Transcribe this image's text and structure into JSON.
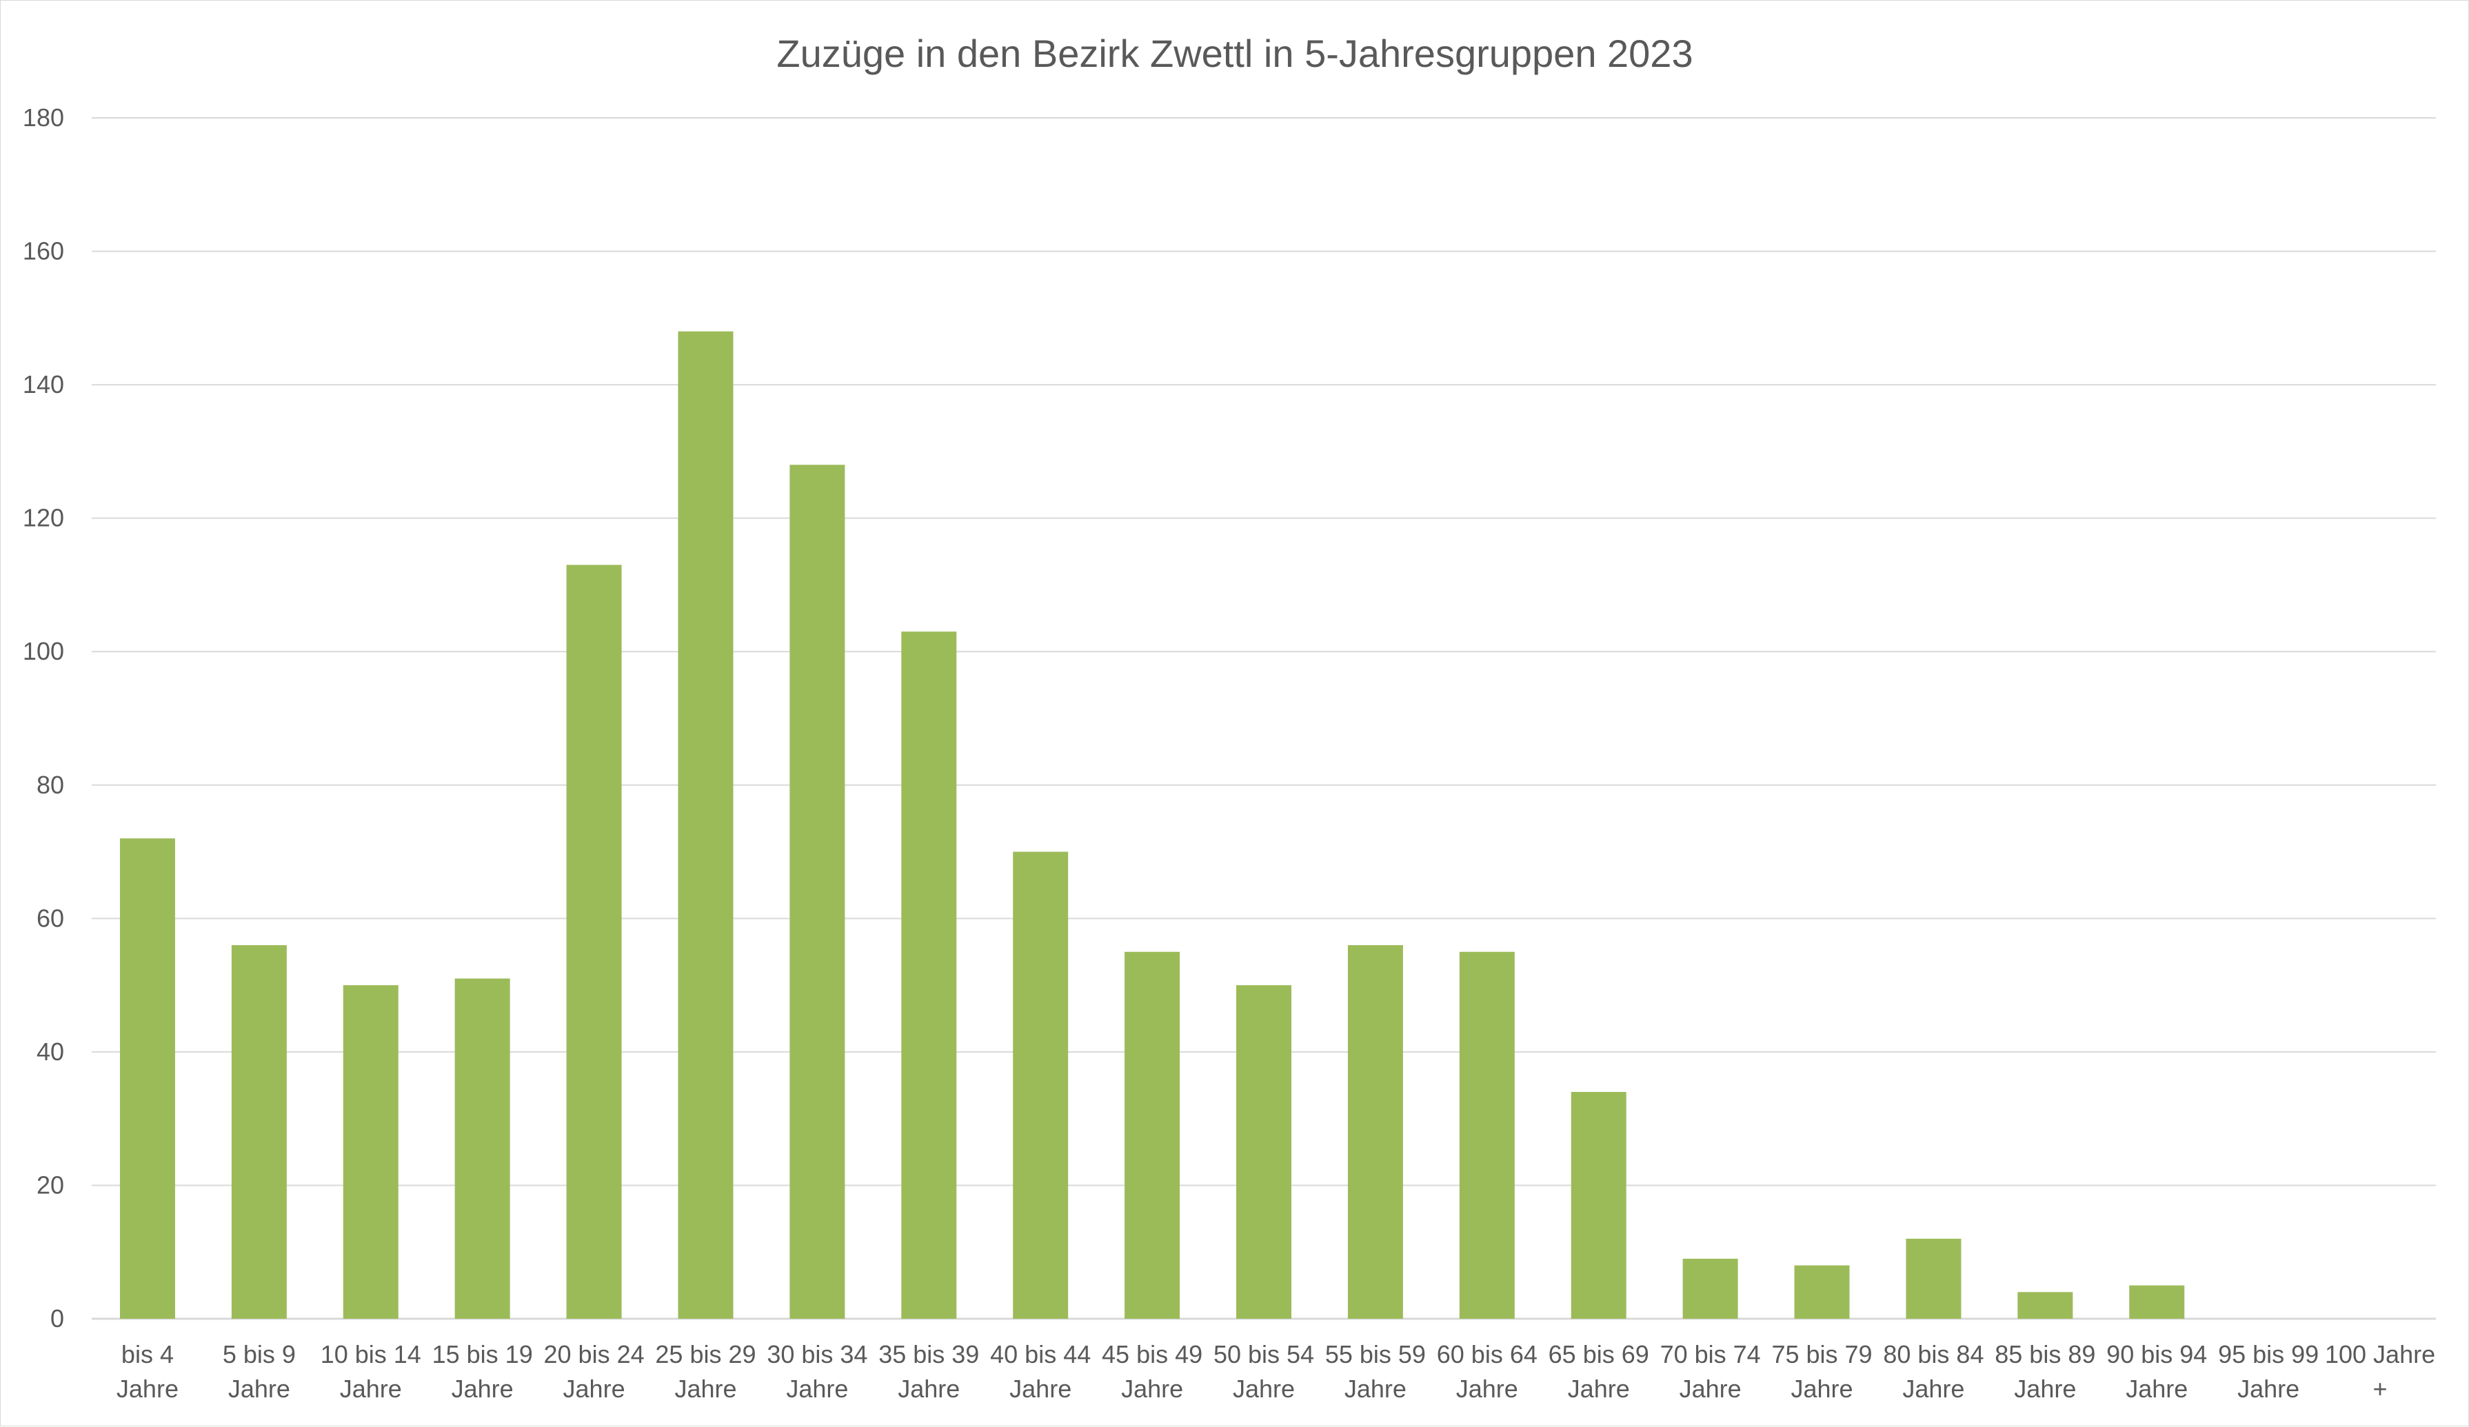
{
  "chart_data": {
    "type": "bar",
    "title": "Zuzüge in den Bezirk Zwettl in 5-Jahresgruppen 2023",
    "xlabel": "",
    "ylabel": "",
    "ylim": [
      0,
      180
    ],
    "yticks": [
      0,
      20,
      40,
      60,
      80,
      100,
      120,
      140,
      160,
      180
    ],
    "grid": true,
    "legend": "none",
    "bar_color": "#9bbb59",
    "categories": [
      [
        "bis 4",
        "Jahre"
      ],
      [
        "5 bis 9",
        "Jahre"
      ],
      [
        "10 bis 14",
        "Jahre"
      ],
      [
        "15 bis 19",
        "Jahre"
      ],
      [
        "20 bis 24",
        "Jahre"
      ],
      [
        "25 bis 29",
        "Jahre"
      ],
      [
        "30 bis 34",
        "Jahre"
      ],
      [
        "35 bis 39",
        "Jahre"
      ],
      [
        "40 bis 44",
        "Jahre"
      ],
      [
        "45 bis 49",
        "Jahre"
      ],
      [
        "50 bis 54",
        "Jahre"
      ],
      [
        "55 bis 59",
        "Jahre"
      ],
      [
        "60 bis 64",
        "Jahre"
      ],
      [
        "65 bis 69",
        "Jahre"
      ],
      [
        "70 bis 74",
        "Jahre"
      ],
      [
        "75 bis 79",
        "Jahre"
      ],
      [
        "80 bis 84",
        "Jahre"
      ],
      [
        "85 bis 89",
        "Jahre"
      ],
      [
        "90 bis 94",
        "Jahre"
      ],
      [
        "95 bis 99",
        "Jahre"
      ],
      [
        "100 Jahre",
        "+"
      ]
    ],
    "values": [
      72,
      56,
      50,
      51,
      113,
      148,
      128,
      103,
      70,
      55,
      50,
      56,
      55,
      34,
      9,
      8,
      12,
      4,
      5,
      0,
      0
    ]
  }
}
